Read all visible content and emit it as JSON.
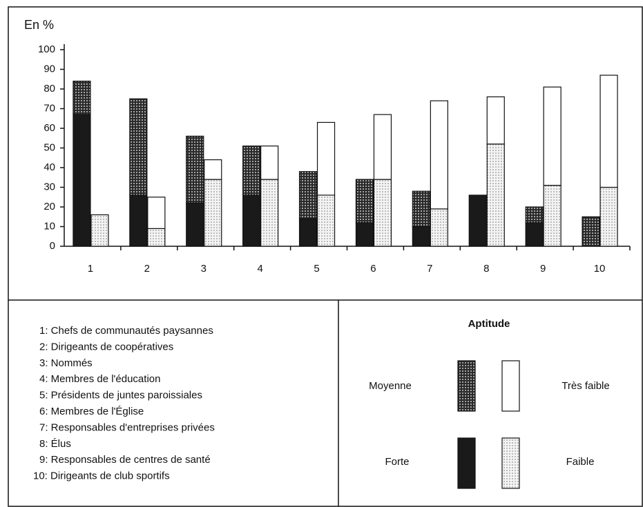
{
  "chart_data": {
    "type": "bar",
    "ylabel": "En %",
    "categories": [
      "1",
      "2",
      "3",
      "4",
      "5",
      "6",
      "7",
      "8",
      "9",
      "10"
    ],
    "series": [
      {
        "name": "Forte",
        "color": "#1a1a1a",
        "pattern": "solid",
        "stack": "left",
        "values": [
          67,
          26,
          22,
          26,
          14,
          12,
          10,
          26,
          12,
          0
        ]
      },
      {
        "name": "Moyenne",
        "color": "#333333",
        "pattern": "dots",
        "stack": "left",
        "values": [
          17,
          49,
          34,
          25,
          24,
          22,
          18,
          0,
          8,
          15
        ]
      },
      {
        "name": "Faible",
        "color": "#d6d6d6",
        "pattern": "dots",
        "stack": "right",
        "values": [
          16,
          9,
          34,
          34,
          26,
          34,
          19,
          52,
          31,
          30
        ]
      },
      {
        "name": "Très faible",
        "color": "#ffffff",
        "pattern": "solid",
        "stack": "right",
        "values": [
          0,
          16,
          10,
          17,
          37,
          33,
          55,
          24,
          50,
          57
        ]
      }
    ],
    "legend_title": "Aptitude",
    "key": [
      "1: Chefs de communautés paysannes",
      "2: Dirigeants de coopératives",
      "3: Nommés",
      "4: Membres de l'éducation",
      "5: Présidents de juntes paroissiales",
      "6: Membres de l'Église",
      "7: Responsables d'entreprises privées",
      "8: Élus",
      "9: Responsables de centres de santé",
      "10: Dirigeants de club sportifs"
    ],
    "ylim": [
      0,
      100
    ],
    "yticks": [
      0,
      10,
      20,
      30,
      40,
      50,
      60,
      70,
      80,
      90,
      100
    ],
    "grid": false
  }
}
